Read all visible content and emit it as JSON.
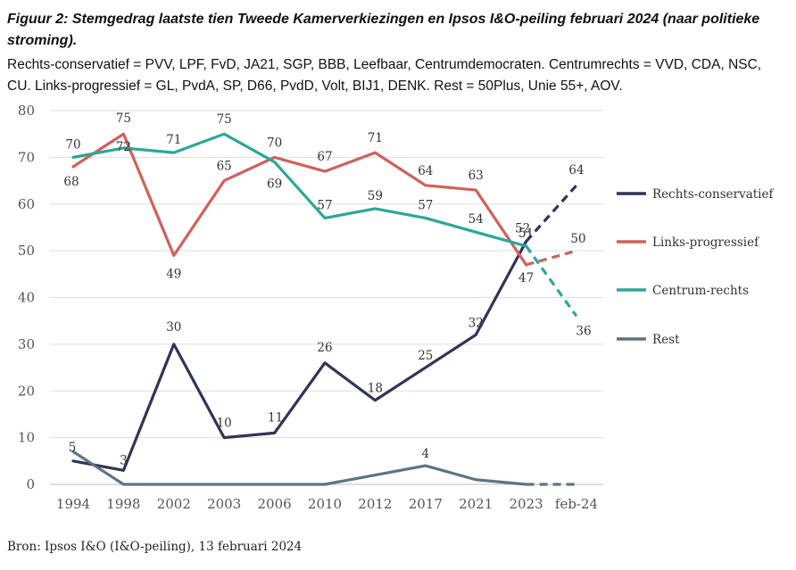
{
  "header": {
    "title": "Figuur 2: Stemgedrag laatste tien Tweede Kamerverkiezingen en Ipsos I&O-peiling februari 2024 (naar politieke stroming).",
    "subtitle": "Rechts-conservatief = PVV, LPF, FvD, JA21, SGP, BBB, Leefbaar, Centrumdemocraten. Centrumrechts = VVD, CDA, NSC, CU. Links-progressief = GL, PvdA, SP, D66, PvdD, Volt, BIJ1, DENK. Rest = 50Plus, Unie 55+, AOV."
  },
  "source": "Bron: Ipsos I&O (I&O-peiling), 13 februari 2024",
  "chart_data": {
    "type": "line",
    "categories": [
      "1994",
      "1998",
      "2002",
      "2003",
      "2006",
      "2010",
      "2012",
      "2017",
      "2021",
      "2023",
      "feb-24"
    ],
    "ylim": [
      0,
      80
    ],
    "yticks": [
      0,
      10,
      20,
      30,
      40,
      50,
      60,
      70,
      80
    ],
    "grid": true,
    "legend_position": "right",
    "projection_segment": "2023 to feb-24 drawn dashed",
    "series": [
      {
        "name": "Rechts-conservatief",
        "color": "#2e3558",
        "values": [
          5,
          3,
          30,
          10,
          11,
          26,
          18,
          25,
          32,
          52,
          64
        ],
        "labels": [
          "5",
          "3",
          "30",
          "10",
          "11",
          "26",
          "18",
          "25",
          "32",
          "52",
          "64"
        ]
      },
      {
        "name": "Links-progressief",
        "color": "#d2605a",
        "values": [
          68,
          75,
          49,
          65,
          70,
          67,
          71,
          64,
          63,
          47,
          50
        ],
        "labels": [
          "68",
          "75",
          "49",
          "65",
          "70",
          "67",
          "71",
          "64",
          "63",
          "47",
          "50"
        ]
      },
      {
        "name": "Centrum-rechts",
        "color": "#2aa89a",
        "values": [
          70,
          72,
          71,
          75,
          69,
          57,
          59,
          57,
          54,
          51,
          36
        ],
        "labels": [
          "70",
          "72",
          "71",
          "75",
          "69",
          "57",
          "59",
          "57",
          "54",
          "51",
          "36"
        ]
      },
      {
        "name": "Rest",
        "color": "#5b7584",
        "values": [
          7,
          0,
          0,
          0,
          0,
          0,
          2,
          4,
          1,
          0,
          0
        ],
        "labels": [
          "",
          "",
          "",
          "",
          "",
          "",
          "",
          "4",
          "",
          "",
          ""
        ]
      }
    ]
  }
}
